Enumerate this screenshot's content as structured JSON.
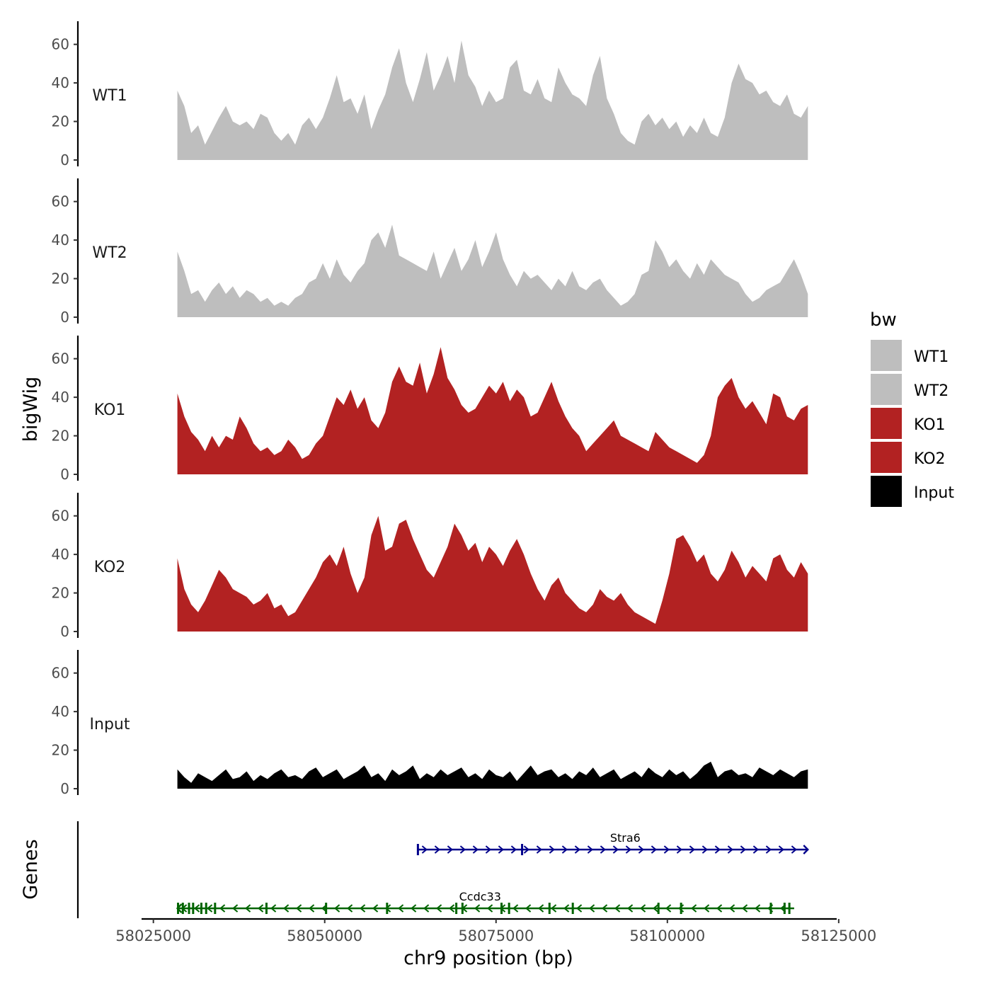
{
  "chart_data": {
    "type": "area",
    "title": "",
    "xlabel": "chr9 position (bp)",
    "ylabel": "bigWig",
    "genes_label": "Genes",
    "xlim": [
      58024000,
      58124500
    ],
    "x_range_tracks": [
      58028500,
      58120500
    ],
    "ylim": [
      0,
      72
    ],
    "y_ticks": [
      0,
      20,
      40,
      60
    ],
    "y_tick_labels": [
      "0",
      "20",
      "40",
      "60"
    ],
    "x_ticks": [
      58025000,
      58050000,
      58075000,
      58100000,
      58125000
    ],
    "x_tick_labels": [
      "58025000",
      "58050000",
      "58075000",
      "58100000",
      "58125000"
    ],
    "legend": {
      "title": "bw",
      "position": "right",
      "entries": [
        {
          "label": "WT1",
          "color": "#BEBEBE"
        },
        {
          "label": "WT2",
          "color": "#BEBEBE"
        },
        {
          "label": "KO1",
          "color": "#B22222"
        },
        {
          "label": "KO2",
          "color": "#B22222"
        },
        {
          "label": "Input",
          "color": "#000000"
        }
      ]
    },
    "series": [
      {
        "name": "WT1",
        "color": "#BEBEBE",
        "values": [
          36,
          28,
          14,
          18,
          8,
          15,
          22,
          28,
          20,
          18,
          20,
          16,
          24,
          22,
          14,
          10,
          14,
          8,
          18,
          22,
          16,
          22,
          32,
          44,
          30,
          32,
          24,
          34,
          16,
          26,
          34,
          48,
          58,
          40,
          30,
          42,
          56,
          36,
          44,
          54,
          40,
          62,
          44,
          38,
          28,
          36,
          30,
          32,
          48,
          52,
          36,
          34,
          42,
          32,
          30,
          48,
          40,
          34,
          32,
          28,
          44,
          54,
          32,
          24,
          14,
          10,
          8,
          20,
          24,
          18,
          22,
          16,
          20,
          12,
          18,
          14,
          22,
          14,
          12,
          22,
          40,
          50,
          42,
          40,
          34,
          36,
          30,
          28,
          34,
          24,
          22,
          28
        ]
      },
      {
        "name": "WT2",
        "color": "#BEBEBE",
        "values": [
          34,
          24,
          12,
          14,
          8,
          14,
          18,
          12,
          16,
          10,
          14,
          12,
          8,
          10,
          6,
          8,
          6,
          10,
          12,
          18,
          20,
          28,
          20,
          30,
          22,
          18,
          24,
          28,
          40,
          44,
          36,
          48,
          32,
          30,
          28,
          26,
          24,
          34,
          20,
          28,
          36,
          24,
          30,
          40,
          26,
          34,
          44,
          30,
          22,
          16,
          24,
          20,
          22,
          18,
          14,
          20,
          16,
          24,
          16,
          14,
          18,
          20,
          14,
          10,
          6,
          8,
          12,
          22,
          24,
          40,
          34,
          26,
          30,
          24,
          20,
          28,
          22,
          30,
          26,
          22,
          20,
          18,
          12,
          8,
          10,
          14,
          16,
          18,
          24,
          30,
          22,
          12
        ]
      },
      {
        "name": "KO1",
        "color": "#B22222",
        "values": [
          42,
          30,
          22,
          18,
          12,
          20,
          14,
          20,
          18,
          30,
          24,
          16,
          12,
          14,
          10,
          12,
          18,
          14,
          8,
          10,
          16,
          20,
          30,
          40,
          36,
          44,
          34,
          40,
          28,
          24,
          32,
          48,
          56,
          48,
          46,
          58,
          42,
          52,
          66,
          50,
          44,
          36,
          32,
          34,
          40,
          46,
          42,
          48,
          38,
          44,
          40,
          30,
          32,
          40,
          48,
          38,
          30,
          24,
          20,
          12,
          16,
          20,
          24,
          28,
          20,
          18,
          16,
          14,
          12,
          22,
          18,
          14,
          12,
          10,
          8,
          6,
          10,
          20,
          40,
          46,
          50,
          40,
          34,
          38,
          32,
          26,
          42,
          40,
          30,
          28,
          34,
          36
        ]
      },
      {
        "name": "KO2",
        "color": "#B22222",
        "values": [
          38,
          22,
          14,
          10,
          16,
          24,
          32,
          28,
          22,
          20,
          18,
          14,
          16,
          20,
          12,
          14,
          8,
          10,
          16,
          22,
          28,
          36,
          40,
          34,
          44,
          30,
          20,
          28,
          50,
          60,
          42,
          44,
          56,
          58,
          48,
          40,
          32,
          28,
          36,
          44,
          56,
          50,
          42,
          46,
          36,
          44,
          40,
          34,
          42,
          48,
          40,
          30,
          22,
          16,
          24,
          28,
          20,
          16,
          12,
          10,
          14,
          22,
          18,
          16,
          20,
          14,
          10,
          8,
          6,
          4,
          16,
          30,
          48,
          50,
          44,
          36,
          40,
          30,
          26,
          32,
          42,
          36,
          28,
          34,
          30,
          26,
          38,
          40,
          32,
          28,
          36,
          30
        ]
      },
      {
        "name": "Input",
        "color": "#000000",
        "values": [
          10,
          6,
          3,
          8,
          6,
          4,
          7,
          10,
          5,
          6,
          9,
          4,
          7,
          5,
          8,
          10,
          6,
          7,
          5,
          9,
          11,
          6,
          8,
          10,
          5,
          7,
          9,
          12,
          6,
          8,
          4,
          10,
          7,
          9,
          12,
          5,
          8,
          6,
          10,
          7,
          9,
          11,
          6,
          8,
          5,
          10,
          7,
          6,
          9,
          4,
          8,
          12,
          7,
          9,
          10,
          6,
          8,
          5,
          9,
          7,
          11,
          6,
          8,
          10,
          5,
          7,
          9,
          6,
          11,
          8,
          6,
          10,
          7,
          9,
          5,
          8,
          12,
          14,
          6,
          9,
          10,
          7,
          8,
          6,
          11,
          9,
          7,
          10,
          8,
          6,
          9,
          10
        ]
      }
    ],
    "genes": [
      {
        "name": "Stra6",
        "start": 58063500,
        "end": 58120500,
        "strand": "+",
        "color": "#00008B",
        "exons": [
          58063600,
          58078800
        ]
      },
      {
        "name": "Ccdc33",
        "start": 58028500,
        "end": 58118500,
        "strand": "-",
        "color": "#006400",
        "exons": [
          58028600,
          58029300,
          58030200,
          58030800,
          58032000,
          58032700,
          58034000,
          58041500,
          58050200,
          58059100,
          58069200,
          58070100,
          58075800,
          58076900,
          58082800,
          58086200,
          58098700,
          58102000,
          58115100,
          58117100,
          58117800
        ]
      }
    ]
  }
}
